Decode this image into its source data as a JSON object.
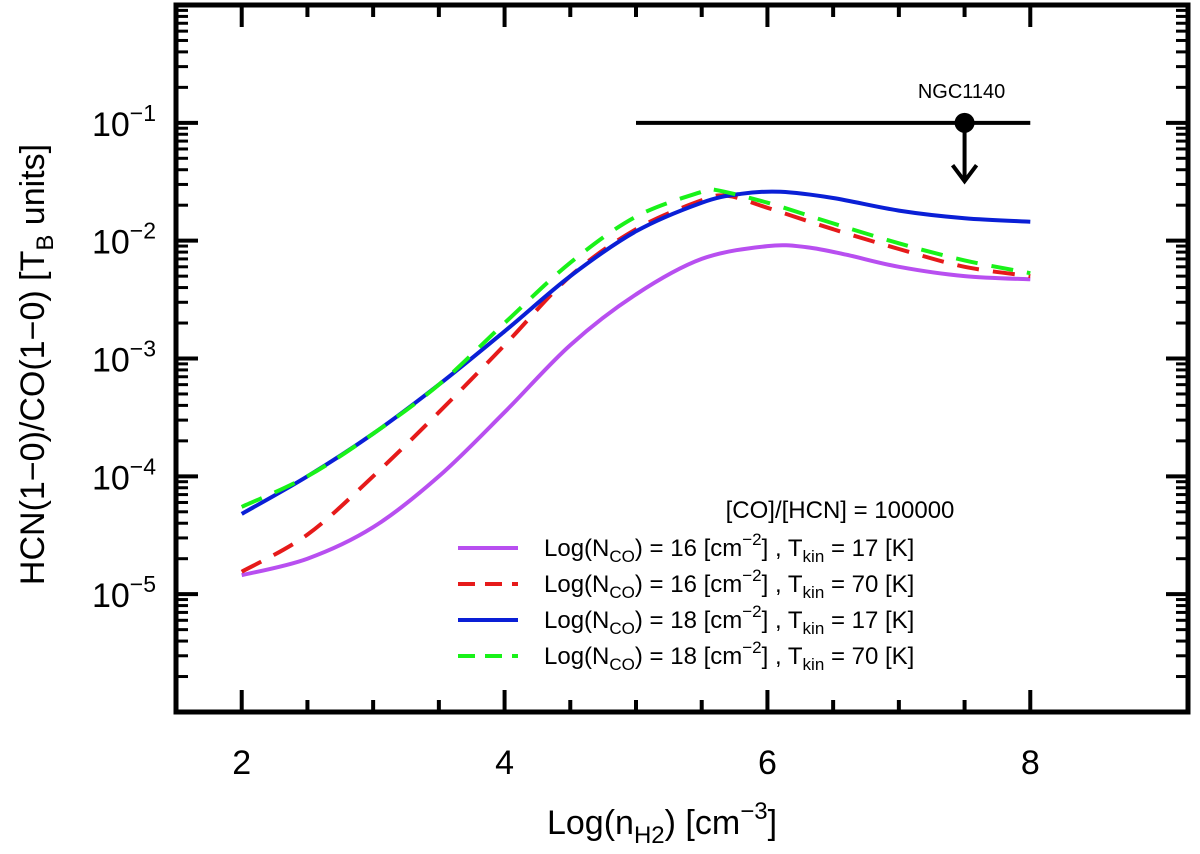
{
  "chart_data": {
    "type": "line",
    "title": "",
    "xlabel": {
      "main": "Log(n",
      "sub": "H2",
      "unit": ") [cm",
      "sup": "−3",
      "end": "]"
    },
    "ylabel": {
      "main": "HCN(1−0)/CO(1−0) [T",
      "sub": "B",
      "end": " units]"
    },
    "x_scale": "linear",
    "y_scale": "log",
    "xlim": [
      1.5,
      9.2
    ],
    "ylim": [
      1e-06,
      1
    ],
    "x_ticks": [
      2,
      4,
      6,
      8
    ],
    "x_tick_labels": [
      "2",
      "4",
      "6",
      "8"
    ],
    "y_ticks": [
      1e-05,
      0.0001,
      0.001,
      0.01,
      0.1
    ],
    "y_tick_labels": [
      {
        "base": "10",
        "exp": "−5"
      },
      {
        "base": "10",
        "exp": "−4"
      },
      {
        "base": "10",
        "exp": "−3"
      },
      {
        "base": "10",
        "exp": "−2"
      },
      {
        "base": "10",
        "exp": "−1"
      }
    ],
    "legend_header": "[CO]/[HCN] =  100000",
    "series": [
      {
        "name": "Log(N_CO) = 16 [cm^-2], T_kin = 17 [K]",
        "label": {
          "a": "Log(N",
          "sub1": "CO",
          "b": ") =  16 [cm",
          "sup": "−2",
          "c": "] ,  T",
          "sub2": "kin",
          "d": " =  17 [K]"
        },
        "color": "#b84ff0",
        "dash": "solid",
        "x": [
          2.0,
          2.5,
          3.0,
          3.5,
          4.0,
          4.5,
          5.0,
          5.5,
          6.0,
          6.3,
          6.6,
          7.0,
          7.5,
          8.0
        ],
        "y": [
          1.45e-05,
          2e-05,
          3.7e-05,
          0.0001,
          0.00035,
          0.0013,
          0.0035,
          0.007,
          0.009,
          0.0088,
          0.0076,
          0.006,
          0.005,
          0.0047
        ]
      },
      {
        "name": "Log(N_CO) = 16 [cm^-2], T_kin = 70 [K]",
        "label": {
          "a": "Log(N",
          "sub1": "CO",
          "b": ") =  16 [cm",
          "sup": "−2",
          "c": "] ,  T",
          "sub2": "kin",
          "d": " =  70 [K]"
        },
        "color": "#e61a1a",
        "dash": "dashed",
        "x": [
          2.0,
          2.5,
          3.0,
          3.5,
          4.0,
          4.5,
          5.0,
          5.5,
          5.7,
          6.0,
          6.5,
          7.0,
          7.5,
          8.0
        ],
        "y": [
          1.55e-05,
          3.2e-05,
          0.0001,
          0.00035,
          0.0013,
          0.005,
          0.0125,
          0.022,
          0.024,
          0.019,
          0.0125,
          0.0085,
          0.006,
          0.005
        ]
      },
      {
        "name": "Log(N_CO) = 18 [cm^-2], T_kin = 17 [K]",
        "label": {
          "a": "Log(N",
          "sub1": "CO",
          "b": ") =  18 [cm",
          "sup": "−2",
          "c": "] ,  T",
          "sub2": "kin",
          "d": " =  17 [K]"
        },
        "color": "#0a1fd6",
        "dash": "solid",
        "x": [
          2.0,
          2.5,
          3.0,
          3.5,
          4.0,
          4.5,
          5.0,
          5.5,
          5.8,
          6.1,
          6.5,
          7.0,
          7.5,
          8.0
        ],
        "y": [
          4.8e-05,
          0.0001,
          0.00023,
          0.0006,
          0.0017,
          0.005,
          0.012,
          0.021,
          0.025,
          0.026,
          0.023,
          0.018,
          0.0155,
          0.0145
        ]
      },
      {
        "name": "Log(N_CO) = 18 [cm^-2], T_kin = 70 [K]",
        "label": {
          "a": "Log(N",
          "sub1": "CO",
          "b": ") =  18 [cm",
          "sup": "−2",
          "c": "] ,  T",
          "sub2": "kin",
          "d": " =  70 [K]"
        },
        "color": "#19f219",
        "dash": "dashed",
        "x": [
          2.0,
          2.5,
          3.0,
          3.5,
          4.0,
          4.5,
          5.0,
          5.5,
          5.6,
          6.0,
          6.5,
          7.0,
          7.5,
          8.0
        ],
        "y": [
          5.5e-05,
          0.0001,
          0.00023,
          0.0006,
          0.002,
          0.0065,
          0.016,
          0.026,
          0.027,
          0.021,
          0.014,
          0.0095,
          0.0068,
          0.0053
        ]
      }
    ],
    "annotations": [
      {
        "type": "upper_limit",
        "label": "NGC1140",
        "x": 7.5,
        "y": 0.1,
        "x_range": [
          5.0,
          8.0
        ],
        "arrow_to_y": 0.032
      }
    ]
  }
}
